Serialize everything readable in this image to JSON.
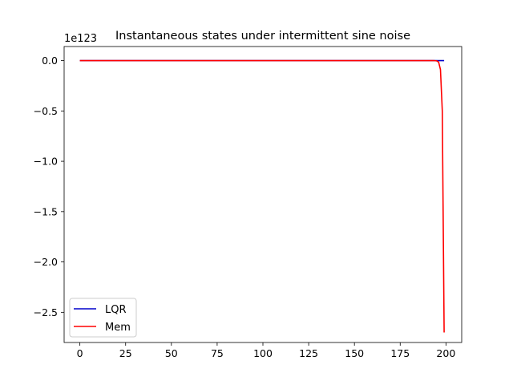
{
  "chart_data": {
    "type": "line",
    "title": "Instantaneous states under intermittent sine noise",
    "xlabel": "",
    "ylabel": "",
    "y_offset_label": "1e123",
    "xlim": [
      -8.6,
      208.6
    ],
    "ylim": [
      -2.8,
      0.14
    ],
    "x_ticks": [
      0,
      25,
      50,
      75,
      100,
      125,
      150,
      175,
      200
    ],
    "x_tick_labels": [
      "0",
      "25",
      "50",
      "75",
      "100",
      "125",
      "150",
      "175",
      "200"
    ],
    "y_ticks": [
      0.0,
      -0.5,
      -1.0,
      -1.5,
      -2.0,
      -2.5
    ],
    "y_tick_labels": [
      "0.0",
      "−0.5",
      "−1.0",
      "−1.5",
      "−2.0",
      "−2.5"
    ],
    "grid": false,
    "legend_position": "lower-left",
    "series": [
      {
        "name": "LQR",
        "color": "#0000cc",
        "points": [
          [
            0,
            0
          ],
          [
            199,
            0
          ]
        ]
      },
      {
        "name": "Mem",
        "color": "#ff0000",
        "points": [
          [
            0,
            0
          ],
          [
            193,
            0
          ],
          [
            194,
            -0.0005
          ],
          [
            195,
            -0.003
          ],
          [
            196,
            -0.015
          ],
          [
            197,
            -0.09
          ],
          [
            198,
            -0.5
          ],
          [
            199,
            -2.7
          ]
        ]
      }
    ]
  }
}
